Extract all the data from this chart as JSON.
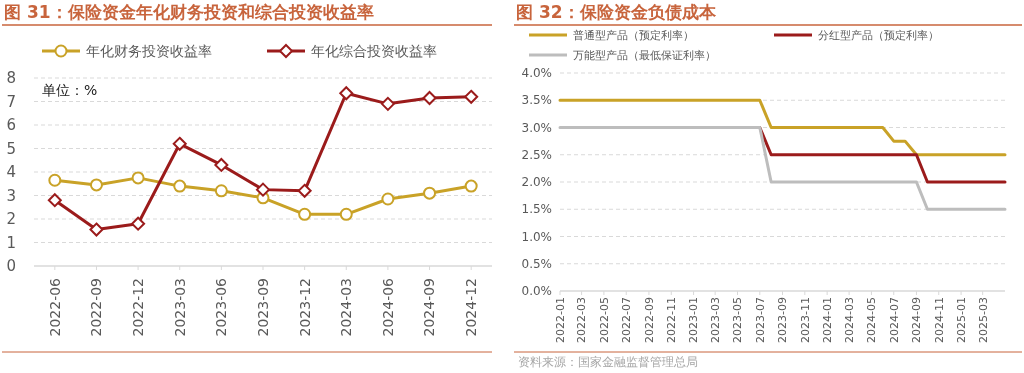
{
  "chart_data": [
    {
      "type": "line",
      "title": "图 31：保险资金年化财务投资和综合投资收益率",
      "categories": [
        "2022-06",
        "2022-09",
        "2022-12",
        "2023-03",
        "2023-06",
        "2023-09",
        "2023-12",
        "2024-03",
        "2024-06",
        "2024-09",
        "2024-12"
      ],
      "series": [
        {
          "name": "年化财务投资收益率",
          "color": "#c9a227",
          "marker": "circle",
          "values": [
            3.65,
            3.45,
            3.75,
            3.4,
            3.2,
            2.9,
            2.2,
            2.2,
            2.85,
            3.1,
            3.4
          ]
        },
        {
          "name": "年化综合投资收益率",
          "color": "#9b1b1b",
          "marker": "diamond",
          "values": [
            2.8,
            1.55,
            1.8,
            5.2,
            4.3,
            3.25,
            3.2,
            7.35,
            6.9,
            7.15,
            7.2
          ]
        }
      ],
      "ylim": [
        0,
        8
      ],
      "yticks": [
        0,
        1,
        2,
        3,
        4,
        5,
        6,
        7,
        8
      ],
      "grid": "y",
      "legend": "top",
      "annotations": [
        "单位：%"
      ]
    },
    {
      "type": "line",
      "title": "图 32：保险资金负债成本",
      "xlim": [
        "2022-01",
        "2025-05"
      ],
      "xticks": [
        "2022-01",
        "2022-03",
        "2022-05",
        "2022-07",
        "2022-09",
        "2022-11",
        "2023-01",
        "2023-03",
        "2023-05",
        "2023-07",
        "2023-09",
        "2023-11",
        "2024-01",
        "2024-03",
        "2024-05",
        "2024-07",
        "2024-09",
        "2024-11",
        "2025-01",
        "2025-03"
      ],
      "series": [
        {
          "name": "普通型产品（预定利率）",
          "color": "#c9a227",
          "x": [
            "2022-01",
            "2023-07",
            "2023-08",
            "2024-06",
            "2024-07",
            "2024-08",
            "2024-09",
            "2025-05"
          ],
          "values": [
            3.5,
            3.5,
            3.0,
            3.0,
            2.75,
            2.75,
            2.5,
            2.5
          ]
        },
        {
          "name": "分红型产品（预定利率）",
          "color": "#9b1b1b",
          "x": [
            "2023-07",
            "2023-08",
            "2024-09",
            "2024-10",
            "2025-05"
          ],
          "values": [
            3.0,
            2.5,
            2.5,
            2.0,
            2.0
          ]
        },
        {
          "name": "万能型产品（最低保证利率）",
          "color": "#bdbdbd",
          "x": [
            "2022-01",
            "2023-07",
            "2023-08",
            "2024-09",
            "2024-10",
            "2025-05"
          ],
          "values": [
            3.0,
            3.0,
            2.0,
            2.0,
            1.5,
            1.5
          ]
        }
      ],
      "ylim": [
        0,
        4
      ],
      "yticks": [
        {
          "value": 0,
          "label": "0.0%"
        },
        {
          "value": 0.5,
          "label": "0.5%"
        },
        {
          "value": 1,
          "label": "1.0%"
        },
        {
          "value": 1.5,
          "label": "1.5%"
        },
        {
          "value": 2,
          "label": "2.0%"
        },
        {
          "value": 2.5,
          "label": "2.5%"
        },
        {
          "value": 3,
          "label": "3.0%"
        },
        {
          "value": 3.5,
          "label": "3.5%"
        },
        {
          "value": 4,
          "label": "4.0%"
        }
      ],
      "grid": "y",
      "legend": "top left",
      "annotations": [
        "资料来源：国家金融监督管理总局"
      ]
    }
  ]
}
